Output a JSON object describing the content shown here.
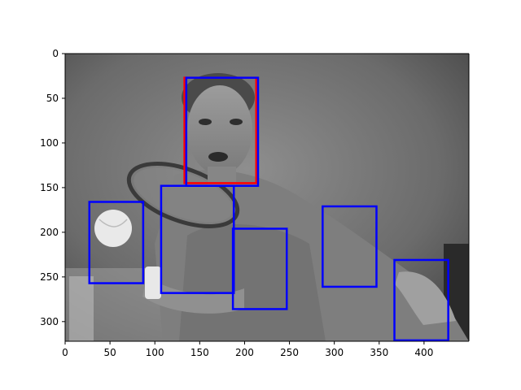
{
  "chart_data": {
    "type": "image_with_bounding_boxes",
    "title": "",
    "xlabel": "",
    "ylabel": "",
    "image": {
      "description_name": "grayscale-photo",
      "width": 450,
      "height": 322
    },
    "xlim": [
      0,
      450
    ],
    "ylim": [
      322,
      0
    ],
    "x_ticks": [
      0,
      50,
      100,
      150,
      200,
      250,
      300,
      350,
      400
    ],
    "y_ticks": [
      0,
      50,
      100,
      150,
      200,
      250,
      300
    ],
    "boxes": [
      {
        "name": "red-box",
        "color": "#ff0000",
        "x1": 133,
        "y1": 27,
        "x2": 213,
        "y2": 145
      },
      {
        "name": "blue-box-1",
        "color": "#0000ff",
        "x1": 135,
        "y1": 27,
        "x2": 215,
        "y2": 148
      },
      {
        "name": "blue-box-2",
        "color": "#0000ff",
        "x1": 27,
        "y1": 166,
        "x2": 87,
        "y2": 257
      },
      {
        "name": "blue-box-3",
        "color": "#0000ff",
        "x1": 107,
        "y1": 148,
        "x2": 188,
        "y2": 268
      },
      {
        "name": "blue-box-4",
        "color": "#0000ff",
        "x1": 187,
        "y1": 196,
        "x2": 247,
        "y2": 286
      },
      {
        "name": "blue-box-5",
        "color": "#0000ff",
        "x1": 287,
        "y1": 171,
        "x2": 347,
        "y2": 261
      },
      {
        "name": "blue-box-6",
        "color": "#0000ff",
        "x1": 367,
        "y1": 231,
        "x2": 427,
        "y2": 321
      }
    ]
  }
}
